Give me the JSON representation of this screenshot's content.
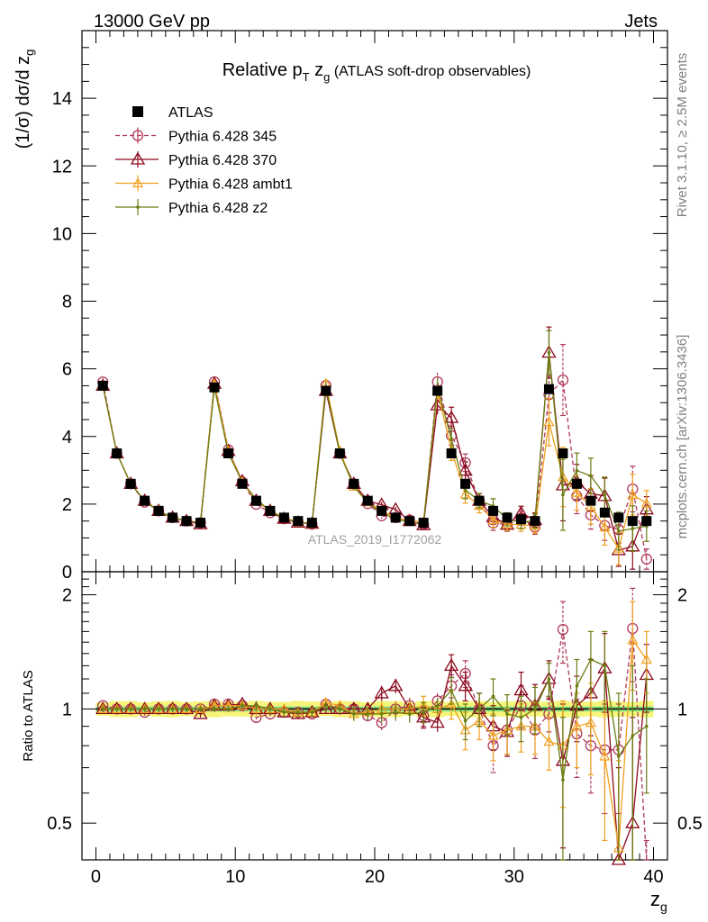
{
  "header": {
    "energy_label": "13000 GeV pp",
    "category_label": "Jets"
  },
  "side_labels": {
    "rivet": "Rivet 3.1.10, ≥ 2.5M events",
    "mcplots": "mcplots.cern.ch [arXiv:1306.3436]"
  },
  "chart_data": {
    "type": "scatter",
    "title_parts": {
      "a": "Relative p",
      "sub_t": "T",
      "b": " z",
      "sub_g": "g",
      "c": " (ATLAS soft-drop observables)"
    },
    "analysis_id": "ATLAS_2019_I1772062",
    "xlabel": "z",
    "xlabel_sub": "g",
    "ylabel": "(1/σ) dσ/d z",
    "ylabel_sub": "g",
    "ratio_ylabel": "Ratio to ATLAS",
    "xlim": [
      -1,
      41
    ],
    "ylim": [
      0,
      16
    ],
    "ratio_ylim": [
      0.4,
      2.3
    ],
    "x_ticks": [
      0,
      10,
      20,
      30,
      40
    ],
    "y_ticks": [
      0,
      2,
      4,
      6,
      8,
      10,
      12,
      14
    ],
    "ratio_ticks": [
      0.5,
      1,
      2
    ],
    "x": [
      0.5,
      1.5,
      2.5,
      3.5,
      4.5,
      5.5,
      6.5,
      7.5,
      8.5,
      9.5,
      10.5,
      11.5,
      12.5,
      13.5,
      14.5,
      15.5,
      16.5,
      17.5,
      18.5,
      19.5,
      20.5,
      21.5,
      22.5,
      23.5,
      24.5,
      25.5,
      26.5,
      27.5,
      28.5,
      29.5,
      30.5,
      31.5,
      32.5,
      33.5,
      34.5,
      35.5,
      36.5,
      37.5,
      38.5,
      39.5
    ],
    "data": {
      "name": "ATLAS",
      "values": [
        5.5,
        3.5,
        2.6,
        2.1,
        1.8,
        1.6,
        1.5,
        1.45,
        5.45,
        3.5,
        2.6,
        2.1,
        1.8,
        1.6,
        1.5,
        1.45,
        5.35,
        3.5,
        2.6,
        2.1,
        1.8,
        1.6,
        1.5,
        1.45,
        5.35,
        3.5,
        2.6,
        2.1,
        1.8,
        1.6,
        1.55,
        1.5,
        5.4,
        3.5,
        2.6,
        2.1,
        1.75,
        1.6,
        1.5,
        1.5
      ],
      "color": "#000000"
    },
    "band_color_inner": "#7fe07f",
    "band_color_outer": "#f5f57a",
    "series": [
      {
        "name": "Pythia 6.428 345",
        "color": "#b03a5a",
        "marker": "circle",
        "dashed": true,
        "ratio": [
          1.02,
          1.0,
          1.0,
          0.98,
          1.0,
          1.0,
          1.0,
          1.0,
          1.03,
          1.03,
          1.02,
          0.95,
          0.97,
          0.98,
          0.98,
          0.97,
          1.03,
          1.0,
          1.0,
          0.96,
          0.92,
          1.0,
          1.02,
          0.96,
          1.05,
          1.15,
          1.24,
          1.0,
          0.8,
          0.88,
          1.02,
          0.88,
          0.97,
          1.62,
          0.86,
          0.8,
          0.78,
          0.78,
          1.63,
          0.25
        ],
        "err": [
          0.02,
          0.02,
          0.02,
          0.02,
          0.02,
          0.02,
          0.02,
          0.02,
          0.02,
          0.02,
          0.02,
          0.03,
          0.03,
          0.03,
          0.03,
          0.03,
          0.03,
          0.03,
          0.04,
          0.04,
          0.05,
          0.05,
          0.05,
          0.06,
          0.05,
          0.08,
          0.1,
          0.1,
          0.12,
          0.12,
          0.13,
          0.14,
          0.1,
          0.3,
          0.2,
          0.2,
          0.25,
          0.25,
          0.45,
          0.2
        ]
      },
      {
        "name": "Pythia 6.428 370",
        "color": "#8b0a1e",
        "marker": "triangle",
        "dashed": false,
        "ratio": [
          1.0,
          1.0,
          1.0,
          1.0,
          1.0,
          1.0,
          1.0,
          0.97,
          1.02,
          1.02,
          1.03,
          1.0,
          1.0,
          0.98,
          0.97,
          0.98,
          1.0,
          1.0,
          1.0,
          1.0,
          1.1,
          1.15,
          1.0,
          0.95,
          0.92,
          1.3,
          1.15,
          1.0,
          0.9,
          0.87,
          1.12,
          1.02,
          1.2,
          0.73,
          1.02,
          1.1,
          1.28,
          0.4,
          0.5,
          1.23
        ],
        "err": [
          0.02,
          0.02,
          0.02,
          0.02,
          0.02,
          0.02,
          0.02,
          0.02,
          0.02,
          0.02,
          0.02,
          0.03,
          0.03,
          0.03,
          0.03,
          0.03,
          0.03,
          0.03,
          0.04,
          0.04,
          0.05,
          0.05,
          0.05,
          0.06,
          0.05,
          0.09,
          0.1,
          0.1,
          0.12,
          0.12,
          0.13,
          0.14,
          0.14,
          0.3,
          0.2,
          0.25,
          0.3,
          0.3,
          0.45,
          0.25
        ]
      },
      {
        "name": "Pythia 6.428 ambt1",
        "color": "#f0a020",
        "marker": "triangle-small",
        "dashed": false,
        "ratio": [
          1.0,
          1.0,
          1.0,
          1.0,
          1.0,
          1.0,
          1.0,
          1.0,
          1.02,
          1.02,
          1.02,
          1.0,
          1.0,
          1.0,
          0.98,
          0.98,
          1.04,
          1.02,
          0.97,
          0.98,
          1.0,
          1.0,
          1.0,
          1.02,
          1.0,
          1.03,
          0.88,
          0.93,
          0.85,
          0.88,
          0.9,
          0.9,
          0.82,
          0.8,
          0.9,
          0.92,
          0.75,
          0.43,
          1.52,
          1.35
        ],
        "err": [
          0.02,
          0.02,
          0.02,
          0.02,
          0.02,
          0.02,
          0.02,
          0.02,
          0.02,
          0.02,
          0.02,
          0.03,
          0.03,
          0.03,
          0.03,
          0.03,
          0.03,
          0.03,
          0.04,
          0.04,
          0.05,
          0.05,
          0.05,
          0.06,
          0.05,
          0.09,
          0.1,
          0.1,
          0.12,
          0.12,
          0.13,
          0.14,
          0.13,
          0.25,
          0.2,
          0.25,
          0.3,
          0.3,
          0.4,
          0.25
        ]
      },
      {
        "name": "Pythia 6.428 z2",
        "color": "#6b7d10",
        "marker": "dot",
        "dashed": false,
        "ratio": [
          1.0,
          1.0,
          1.0,
          1.0,
          1.0,
          1.0,
          1.0,
          1.0,
          1.0,
          1.0,
          1.02,
          1.02,
          1.0,
          0.98,
          0.98,
          0.98,
          1.02,
          1.0,
          0.97,
          0.97,
          0.97,
          0.98,
          0.97,
          0.98,
          1.02,
          1.12,
          0.93,
          1.0,
          1.08,
          0.97,
          0.95,
          1.0,
          1.2,
          0.65,
          1.15,
          1.35,
          1.3,
          0.75,
          0.85,
          0.9
        ],
        "err": [
          0.02,
          0.02,
          0.02,
          0.02,
          0.02,
          0.02,
          0.02,
          0.02,
          0.02,
          0.02,
          0.02,
          0.03,
          0.03,
          0.03,
          0.03,
          0.03,
          0.03,
          0.03,
          0.04,
          0.04,
          0.05,
          0.05,
          0.05,
          0.06,
          0.05,
          0.09,
          0.1,
          0.1,
          0.12,
          0.12,
          0.13,
          0.14,
          0.12,
          0.3,
          0.2,
          0.25,
          0.3,
          0.35,
          0.45,
          0.3
        ]
      }
    ]
  }
}
